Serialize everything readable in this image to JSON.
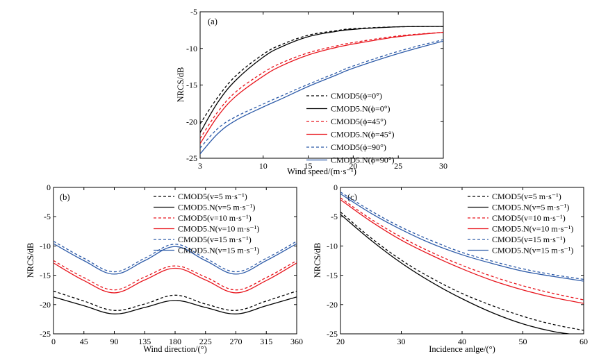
{
  "chart_data": [
    {
      "type": "line",
      "panel": "(a)",
      "xlabel": "Wind speed/(m·s⁻¹)",
      "ylabel": "NRCS/dB",
      "xlim": [
        3,
        30
      ],
      "ylim": [
        -25,
        -5
      ],
      "xticks": [
        3,
        10,
        15,
        20,
        25,
        30
      ],
      "yticks": [
        -25,
        -20,
        -15,
        -10,
        -5
      ],
      "legend_position": "bottom-right",
      "series": [
        {
          "name": "CMOD5(ϕ=0°)",
          "color": "#000000",
          "dash": true,
          "x": [
            3,
            5,
            7,
            10,
            12,
            15,
            18,
            20,
            25,
            30
          ],
          "y": [
            -20.3,
            -16.6,
            -13.7,
            -10.8,
            -9.5,
            -8.2,
            -7.6,
            -7.3,
            -7.05,
            -7.0
          ]
        },
        {
          "name": "CMOD5.N(ϕ=0°)",
          "color": "#000000",
          "dash": false,
          "x": [
            3,
            5,
            7,
            10,
            12,
            15,
            18,
            20,
            25,
            30
          ],
          "y": [
            -21.5,
            -17.3,
            -14.3,
            -11.2,
            -9.8,
            -8.4,
            -7.7,
            -7.4,
            -7.05,
            -7.0
          ]
        },
        {
          "name": "CMOD5(ϕ=45°)",
          "color": "#e8141c",
          "dash": true,
          "x": [
            3,
            5,
            7,
            10,
            12,
            15,
            18,
            20,
            25,
            30
          ],
          "y": [
            -22.3,
            -18.6,
            -15.9,
            -13.3,
            -12.0,
            -10.6,
            -9.7,
            -9.2,
            -8.3,
            -7.8
          ]
        },
        {
          "name": "CMOD5.N(ϕ=45°)",
          "color": "#e8141c",
          "dash": false,
          "x": [
            3,
            5,
            7,
            10,
            12,
            15,
            18,
            20,
            25,
            30
          ],
          "y": [
            -23.0,
            -19.2,
            -16.5,
            -13.8,
            -12.4,
            -10.9,
            -9.9,
            -9.4,
            -8.4,
            -7.8
          ]
        },
        {
          "name": "CMOD5(ϕ=90°)",
          "color": "#2c5aa8",
          "dash": true,
          "x": [
            3,
            5,
            7,
            10,
            12,
            15,
            18,
            20,
            25,
            30
          ],
          "y": [
            -23.6,
            -20.9,
            -19.3,
            -17.6,
            -16.5,
            -14.9,
            -13.4,
            -12.4,
            -10.4,
            -8.8
          ]
        },
        {
          "name": "CMOD5.N(ϕ=90°)",
          "color": "#2c5aa8",
          "dash": false,
          "x": [
            3,
            5,
            7,
            10,
            12,
            15,
            18,
            20,
            25,
            30
          ],
          "y": [
            -24.4,
            -21.6,
            -19.8,
            -18.0,
            -16.9,
            -15.2,
            -13.7,
            -12.7,
            -10.7,
            -9.0
          ]
        }
      ]
    },
    {
      "type": "line",
      "panel": "(b)",
      "xlabel": "Wind direction/(°)",
      "ylabel": "NRCS/dB",
      "xlim": [
        0,
        360
      ],
      "ylim": [
        -25,
        0
      ],
      "xticks": [
        0,
        45,
        90,
        135,
        180,
        225,
        270,
        315,
        360
      ],
      "yticks": [
        -25,
        -20,
        -15,
        -10,
        -5,
        0
      ],
      "legend_position": "top-right",
      "series": [
        {
          "name": "CMOD5(v=5 m·s⁻¹)",
          "color": "#000000",
          "dash": true,
          "x": [
            0,
            45,
            90,
            135,
            180,
            225,
            270,
            315,
            360
          ],
          "y": [
            -17.7,
            -19.4,
            -21.0,
            -19.9,
            -18.4,
            -19.9,
            -21.0,
            -19.4,
            -17.7
          ]
        },
        {
          "name": "CMOD5.N(v=5 m·s⁻¹)",
          "color": "#000000",
          "dash": false,
          "x": [
            0,
            45,
            90,
            135,
            180,
            225,
            270,
            315,
            360
          ],
          "y": [
            -18.7,
            -20.2,
            -21.6,
            -20.5,
            -19.3,
            -20.5,
            -21.6,
            -20.2,
            -18.7
          ]
        },
        {
          "name": "CMOD5(v=10 m·s⁻¹)",
          "color": "#e8141c",
          "dash": true,
          "x": [
            0,
            45,
            90,
            135,
            180,
            225,
            270,
            315,
            360
          ],
          "y": [
            -12.5,
            -15.4,
            -17.5,
            -15.3,
            -13.4,
            -15.3,
            -17.5,
            -15.4,
            -12.5
          ]
        },
        {
          "name": "CMOD5.N(v=10 m·s⁻¹)",
          "color": "#e8141c",
          "dash": false,
          "x": [
            0,
            45,
            90,
            135,
            180,
            225,
            270,
            315,
            360
          ],
          "y": [
            -12.9,
            -15.9,
            -18.0,
            -15.8,
            -13.8,
            -15.8,
            -18.0,
            -15.9,
            -12.9
          ]
        },
        {
          "name": "CMOD5(v=15 m·s⁻¹)",
          "color": "#2c5aa8",
          "dash": true,
          "x": [
            0,
            45,
            90,
            135,
            180,
            225,
            270,
            315,
            360
          ],
          "y": [
            -9.2,
            -12.1,
            -14.4,
            -12.1,
            -9.7,
            -12.1,
            -14.4,
            -12.1,
            -9.2
          ]
        },
        {
          "name": "CMOD5.N(v=15 m·s⁻¹)",
          "color": "#2c5aa8",
          "dash": false,
          "x": [
            0,
            45,
            90,
            135,
            180,
            225,
            270,
            315,
            360
          ],
          "y": [
            -9.6,
            -12.5,
            -14.8,
            -12.5,
            -10.1,
            -12.5,
            -14.8,
            -12.5,
            -9.6
          ]
        }
      ]
    },
    {
      "type": "line",
      "panel": "(c)",
      "xlabel": "Incidence anlge/(°)",
      "ylabel": "NRCS/dB",
      "xlim": [
        20,
        60
      ],
      "ylim": [
        -25,
        0
      ],
      "xticks": [
        20,
        30,
        40,
        50,
        60
      ],
      "yticks": [
        -25,
        -20,
        -15,
        -10,
        -5,
        0
      ],
      "legend_position": "top-right",
      "series": [
        {
          "name": "CMOD5(v=5 m·s⁻¹)",
          "color": "#000000",
          "dash": true,
          "x": [
            20,
            25,
            30,
            35,
            40,
            45,
            50,
            55,
            60
          ],
          "y": [
            -4.2,
            -8.6,
            -12.4,
            -15.5,
            -18.1,
            -20.2,
            -22.0,
            -23.4,
            -24.4
          ]
        },
        {
          "name": "CMOD5.N(v=5 m·s⁻¹)",
          "color": "#000000",
          "dash": false,
          "x": [
            20,
            25,
            30,
            35,
            40,
            45,
            50,
            55,
            60
          ],
          "y": [
            -4.6,
            -9.0,
            -12.9,
            -16.2,
            -19.0,
            -21.4,
            -23.3,
            -24.6,
            -25.3
          ]
        },
        {
          "name": "CMOD5(v=10 m·s⁻¹)",
          "color": "#e8141c",
          "dash": true,
          "x": [
            20,
            25,
            30,
            35,
            40,
            45,
            50,
            55,
            60
          ],
          "y": [
            -1.8,
            -5.4,
            -8.5,
            -11.1,
            -13.3,
            -15.2,
            -16.8,
            -18.1,
            -19.2
          ]
        },
        {
          "name": "CMOD5.N(v=10 m·s⁻¹)",
          "color": "#e8141c",
          "dash": false,
          "x": [
            20,
            25,
            30,
            35,
            40,
            45,
            50,
            55,
            60
          ],
          "y": [
            -2.1,
            -5.8,
            -9.0,
            -11.6,
            -13.9,
            -15.9,
            -17.5,
            -18.8,
            -19.8
          ]
        },
        {
          "name": "CMOD5(v=15 m·s⁻¹)",
          "color": "#2c5aa8",
          "dash": true,
          "x": [
            20,
            25,
            30,
            35,
            40,
            45,
            50,
            55,
            60
          ],
          "y": [
            -0.8,
            -4.0,
            -6.8,
            -9.1,
            -11.1,
            -12.6,
            -13.9,
            -14.9,
            -15.7
          ]
        },
        {
          "name": "CMOD5.N(v=15 m·s⁻¹)",
          "color": "#2c5aa8",
          "dash": false,
          "x": [
            20,
            25,
            30,
            35,
            40,
            45,
            50,
            55,
            60
          ],
          "y": [
            -1.1,
            -4.4,
            -7.2,
            -9.6,
            -11.5,
            -13.0,
            -14.3,
            -15.2,
            -16.0
          ]
        }
      ]
    }
  ]
}
